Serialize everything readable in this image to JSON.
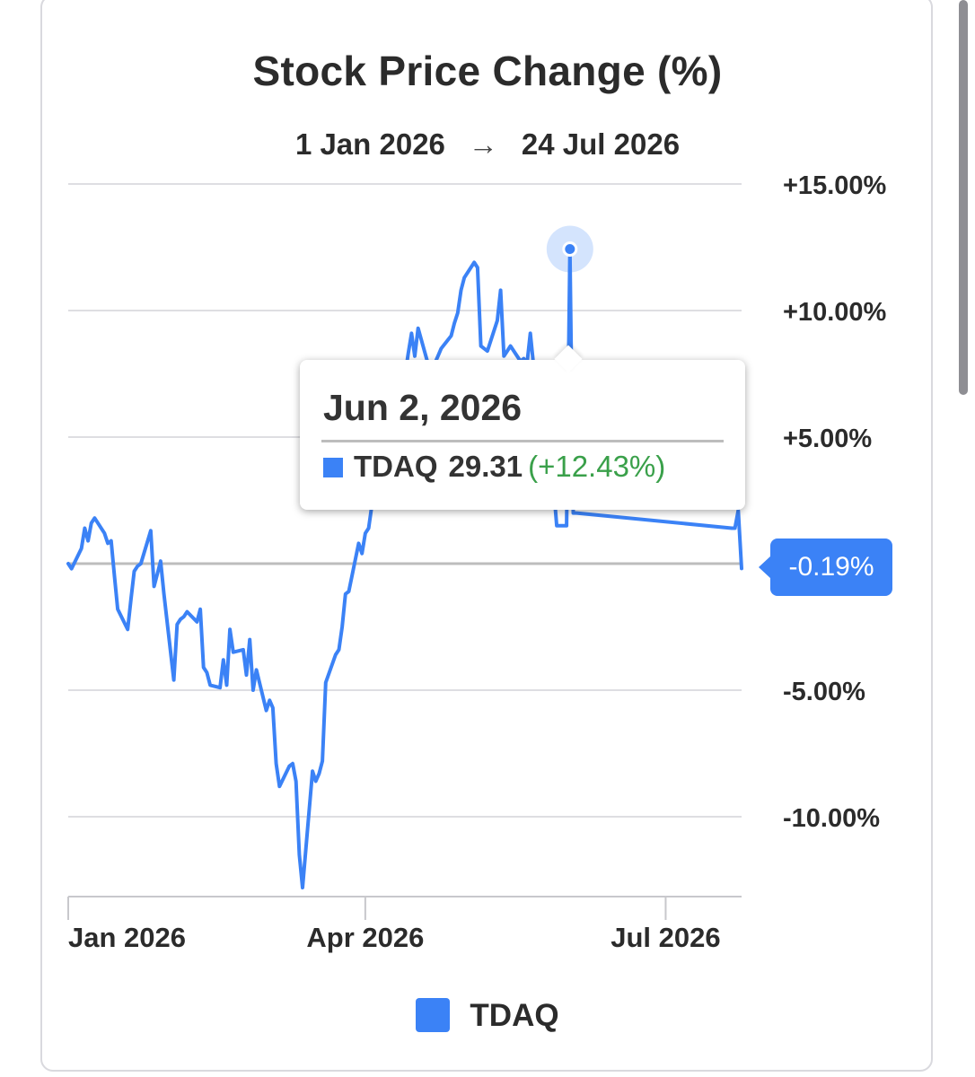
{
  "header": {
    "title": "Stock Price Change (%)",
    "range_start": "1 Jan 2026",
    "range_arrow": "→",
    "range_end": "24 Jul 2026"
  },
  "tooltip": {
    "date": "Jun 2, 2026",
    "ticker": "TDAQ",
    "price": "29.31",
    "change": "(+12.43%)"
  },
  "last_value_badge": "-0.19%",
  "legend": {
    "label": "TDAQ"
  },
  "colors": {
    "series": "#3b82f6",
    "positive": "#3aa04a",
    "grid": "#dedee2",
    "zero_line": "#bdbdbd"
  },
  "chart_data": {
    "type": "line",
    "title": "Stock Price Change (%)",
    "subtitle": "1 Jan 2026 → 24 Jul 2026",
    "x_tick_labels": [
      "Jan 2026",
      "Apr 2026",
      "Jul 2026"
    ],
    "x_ticks": [
      "2026-01-01",
      "2026-04-01",
      "2026-07-01"
    ],
    "y_tick_labels": [
      "+15.00%",
      "+10.00%",
      "+5.00%",
      "-5.00%",
      "-10.00%"
    ],
    "y_ticks": [
      15,
      10,
      5,
      -5,
      -10
    ],
    "ylim": [
      -13.5,
      15
    ],
    "xlim": [
      "2026-01-01",
      "2026-07-24"
    ],
    "grid": true,
    "legend": "bottom",
    "series": [
      {
        "name": "TDAQ",
        "points": [
          [
            "2026-01-01",
            0.0
          ],
          [
            "2026-01-02",
            -0.2
          ],
          [
            "2026-01-05",
            0.6
          ],
          [
            "2026-01-06",
            1.4
          ],
          [
            "2026-01-07",
            0.9
          ],
          [
            "2026-01-08",
            1.6
          ],
          [
            "2026-01-09",
            1.8
          ],
          [
            "2026-01-12",
            1.2
          ],
          [
            "2026-01-13",
            0.8
          ],
          [
            "2026-01-14",
            0.9
          ],
          [
            "2026-01-15",
            -0.5
          ],
          [
            "2026-01-16",
            -1.8
          ],
          [
            "2026-01-19",
            -2.6
          ],
          [
            "2026-01-20",
            -1.4
          ],
          [
            "2026-01-21",
            -0.3
          ],
          [
            "2026-01-22",
            -0.1
          ],
          [
            "2026-01-23",
            0.0
          ],
          [
            "2026-01-26",
            1.3
          ],
          [
            "2026-01-27",
            -0.9
          ],
          [
            "2026-01-28",
            -0.4
          ],
          [
            "2026-01-29",
            0.1
          ],
          [
            "2026-01-30",
            -1.2
          ],
          [
            "2026-02-02",
            -4.6
          ],
          [
            "2026-02-03",
            -2.4
          ],
          [
            "2026-02-04",
            -2.2
          ],
          [
            "2026-02-05",
            -2.1
          ],
          [
            "2026-02-06",
            -1.9
          ],
          [
            "2026-02-09",
            -2.3
          ],
          [
            "2026-02-10",
            -1.8
          ],
          [
            "2026-02-11",
            -4.1
          ],
          [
            "2026-02-12",
            -4.3
          ],
          [
            "2026-02-13",
            -4.8
          ],
          [
            "2026-02-16",
            -4.9
          ],
          [
            "2026-02-17",
            -3.8
          ],
          [
            "2026-02-18",
            -4.8
          ],
          [
            "2026-02-19",
            -2.6
          ],
          [
            "2026-02-20",
            -3.5
          ],
          [
            "2026-02-23",
            -3.4
          ],
          [
            "2026-02-24",
            -4.4
          ],
          [
            "2026-02-25",
            -3.0
          ],
          [
            "2026-02-26",
            -5.0
          ],
          [
            "2026-02-27",
            -4.2
          ],
          [
            "2026-03-02",
            -5.8
          ],
          [
            "2026-03-03",
            -5.4
          ],
          [
            "2026-03-04",
            -5.7
          ],
          [
            "2026-03-05",
            -7.9
          ],
          [
            "2026-03-06",
            -8.8
          ],
          [
            "2026-03-09",
            -8.0
          ],
          [
            "2026-03-10",
            -7.9
          ],
          [
            "2026-03-11",
            -8.6
          ],
          [
            "2026-03-12",
            -11.5
          ],
          [
            "2026-03-13",
            -12.8
          ],
          [
            "2026-03-16",
            -8.2
          ],
          [
            "2026-03-17",
            -8.6
          ],
          [
            "2026-03-18",
            -8.3
          ],
          [
            "2026-03-19",
            -7.8
          ],
          [
            "2026-03-20",
            -4.7
          ],
          [
            "2026-03-23",
            -3.6
          ],
          [
            "2026-03-24",
            -3.4
          ],
          [
            "2026-03-25",
            -2.5
          ],
          [
            "2026-03-26",
            -1.2
          ],
          [
            "2026-03-27",
            -1.1
          ],
          [
            "2026-03-30",
            0.8
          ],
          [
            "2026-03-31",
            0.4
          ],
          [
            "2026-04-01",
            1.2
          ],
          [
            "2026-04-02",
            1.4
          ],
          [
            "2026-04-03",
            2.3
          ],
          [
            "2026-04-06",
            3.5
          ],
          [
            "2026-04-07",
            4.6
          ],
          [
            "2026-04-08",
            5.5
          ],
          [
            "2026-04-09",
            6.1
          ],
          [
            "2026-04-10",
            6.8
          ],
          [
            "2026-04-13",
            7.4
          ],
          [
            "2026-04-14",
            8.3
          ],
          [
            "2026-04-15",
            9.1
          ],
          [
            "2026-04-16",
            8.2
          ],
          [
            "2026-04-17",
            9.3
          ],
          [
            "2026-04-20",
            7.9
          ],
          [
            "2026-04-21",
            7.7
          ],
          [
            "2026-04-22",
            7.9
          ],
          [
            "2026-04-23",
            8.2
          ],
          [
            "2026-04-24",
            8.5
          ],
          [
            "2026-04-27",
            9.0
          ],
          [
            "2026-04-28",
            9.5
          ],
          [
            "2026-04-29",
            9.9
          ],
          [
            "2026-04-30",
            10.8
          ],
          [
            "2026-05-01",
            11.3
          ],
          [
            "2026-05-04",
            11.9
          ],
          [
            "2026-05-05",
            11.7
          ],
          [
            "2026-05-06",
            8.6
          ],
          [
            "2026-05-07",
            8.5
          ],
          [
            "2026-05-08",
            8.4
          ],
          [
            "2026-05-11",
            9.6
          ],
          [
            "2026-05-12",
            10.8
          ],
          [
            "2026-05-13",
            8.2
          ],
          [
            "2026-05-14",
            8.4
          ],
          [
            "2026-05-15",
            8.6
          ],
          [
            "2026-05-18",
            8.0
          ],
          [
            "2026-05-19",
            8.1
          ],
          [
            "2026-05-20",
            7.9
          ],
          [
            "2026-05-21",
            9.1
          ],
          [
            "2026-05-22",
            7.8
          ],
          [
            "2026-05-25",
            6.8
          ],
          [
            "2026-05-26",
            5.2
          ],
          [
            "2026-05-27",
            4.3
          ],
          [
            "2026-05-28",
            3.1
          ],
          [
            "2026-05-29",
            1.5
          ],
          [
            "2026-06-01",
            1.5
          ],
          [
            "2026-06-02",
            12.43
          ],
          [
            "2026-06-03",
            2.0
          ],
          [
            "2026-06-04",
            2.0
          ],
          [
            "2026-07-21",
            1.4
          ],
          [
            "2026-07-22",
            1.4
          ],
          [
            "2026-07-23",
            2.1
          ],
          [
            "2026-07-24",
            -0.19
          ]
        ]
      }
    ]
  }
}
